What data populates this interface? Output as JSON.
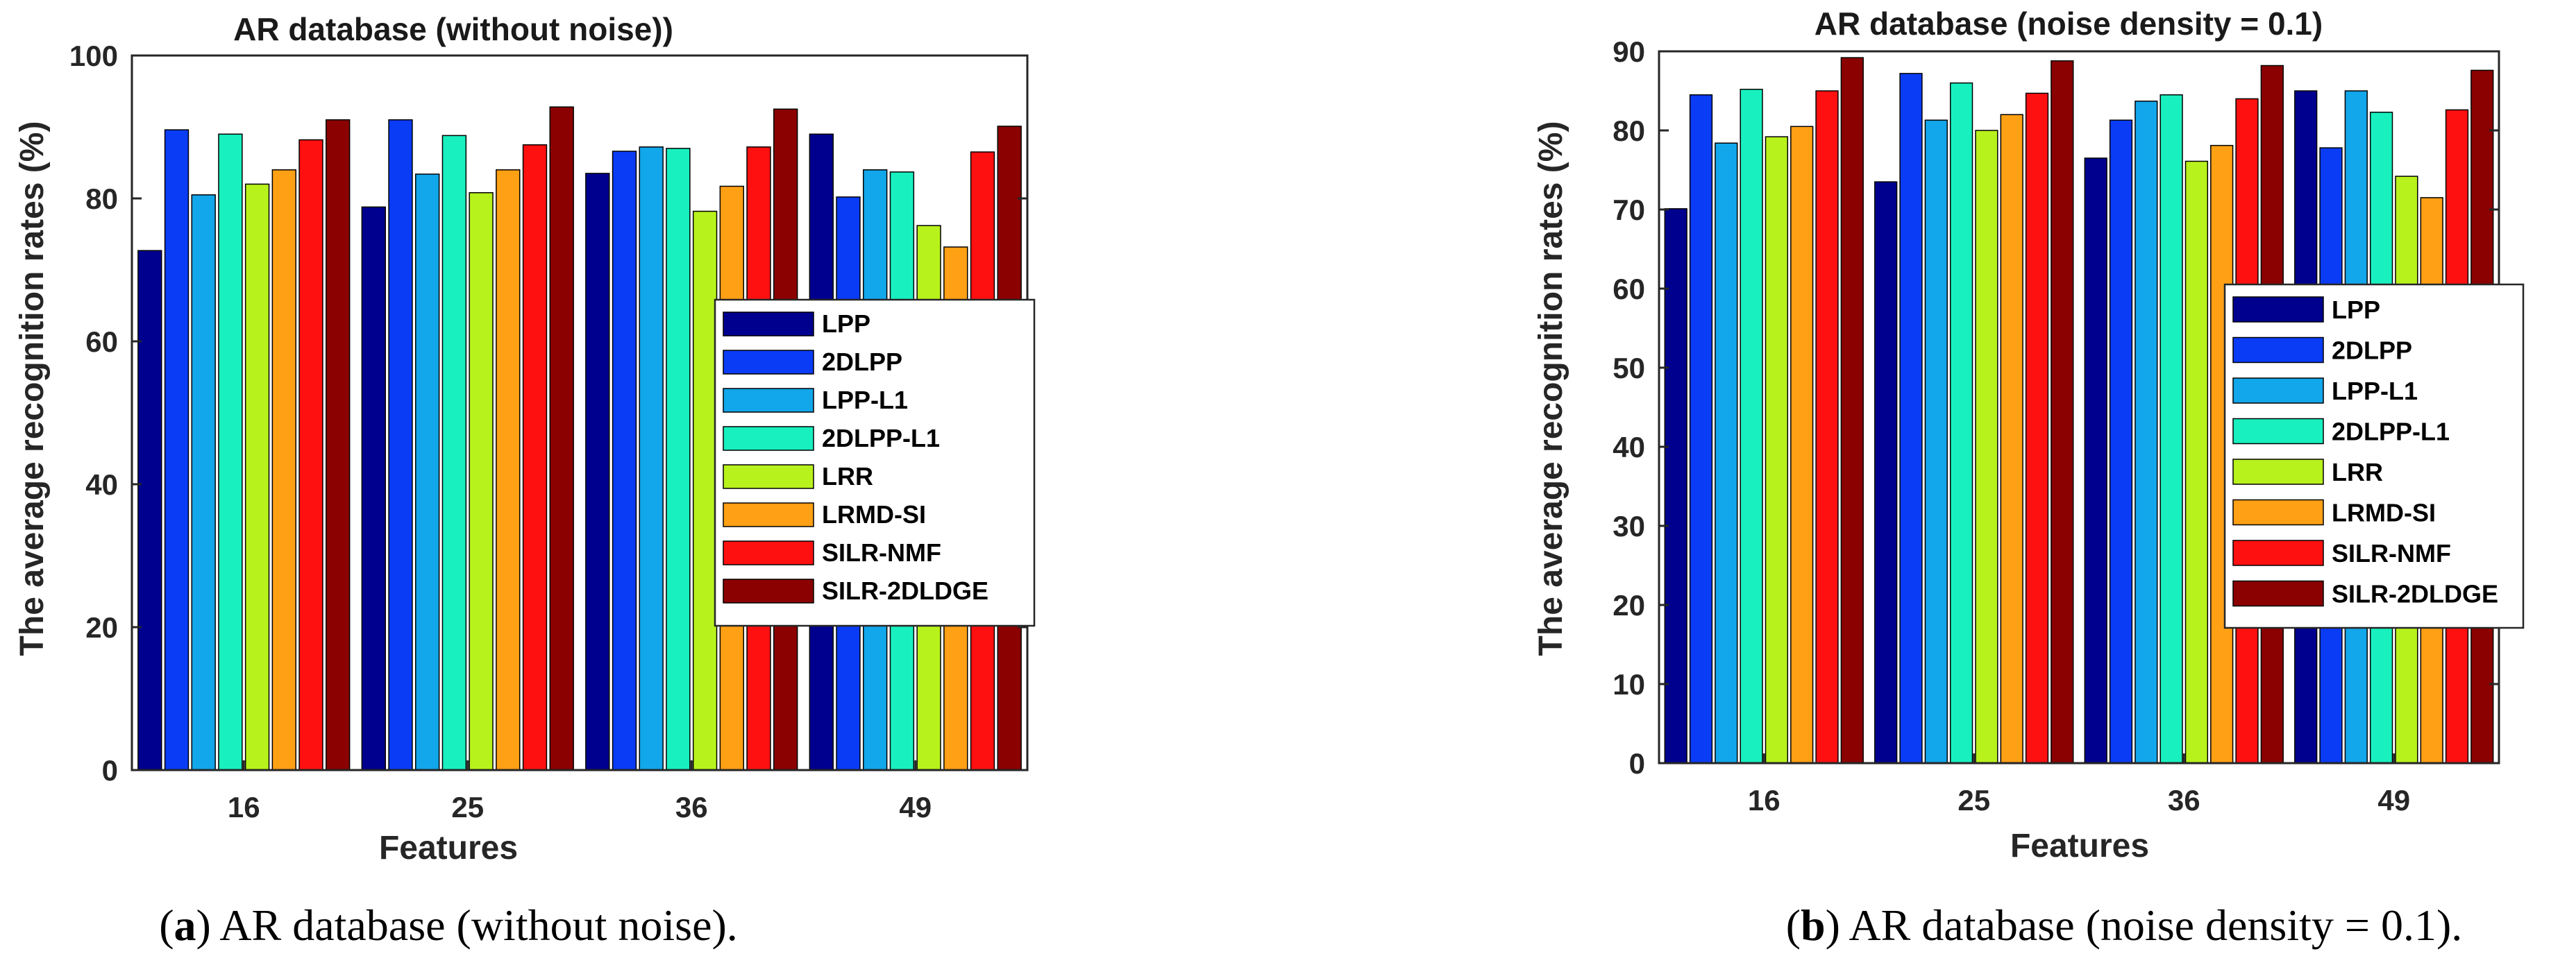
{
  "colors": {
    "LPP": "#00008f",
    "2DLPP": "#0a3cf5",
    "LPP-L1": "#12a6ea",
    "2DLPP-L1": "#18f0bf",
    "LRR": "#b8f21c",
    "LRMD-SI": "#ffa015",
    "SILR-NMF": "#ff1010",
    "SILR-2DLDGE": "#8b0000"
  },
  "chart_data": [
    {
      "type": "bar",
      "title": "AR database (without noise))",
      "xlabel": "Features",
      "ylabel": "The average recognition rates (%)",
      "categories": [
        "16",
        "25",
        "36",
        "49"
      ],
      "ylim": [
        0,
        100
      ],
      "yticks": [
        "0",
        "20",
        "40",
        "60",
        "80",
        "100"
      ],
      "legend_position": "center-right",
      "caption_letter": "a",
      "caption_text": "AR database (without noise).",
      "series": [
        {
          "name": "LPP",
          "values": [
            72.7,
            78.8,
            83.5,
            89.0
          ]
        },
        {
          "name": "2DLPP",
          "values": [
            89.6,
            91.0,
            86.6,
            80.2
          ]
        },
        {
          "name": "LPP-L1",
          "values": [
            80.5,
            83.4,
            87.2,
            84.0
          ]
        },
        {
          "name": "2DLPP-L1",
          "values": [
            89.0,
            88.8,
            87.0,
            83.7
          ]
        },
        {
          "name": "LRR",
          "values": [
            82.0,
            80.8,
            78.2,
            76.2
          ]
        },
        {
          "name": "LRMD-SI",
          "values": [
            84.0,
            84.0,
            81.7,
            73.2
          ]
        },
        {
          "name": "SILR-NMF",
          "values": [
            88.2,
            87.5,
            87.2,
            86.5
          ]
        },
        {
          "name": "SILR-2DLDGE",
          "values": [
            91.0,
            92.8,
            92.5,
            90.1
          ]
        }
      ]
    },
    {
      "type": "bar",
      "title": "AR database (noise density = 0.1)",
      "xlabel": "Features",
      "ylabel": "The average recognition rates (%)",
      "categories": [
        "16",
        "25",
        "36",
        "49"
      ],
      "ylim": [
        0,
        90
      ],
      "yticks": [
        "0",
        "10",
        "20",
        "30",
        "40",
        "50",
        "60",
        "70",
        "80",
        "90"
      ],
      "legend_position": "center-right",
      "caption_letter": "b",
      "caption_text": "AR database (noise density = 0.1).",
      "series": [
        {
          "name": "LPP",
          "values": [
            70.1,
            73.5,
            76.5,
            85.0
          ]
        },
        {
          "name": "2DLPP",
          "values": [
            84.5,
            87.2,
            81.3,
            77.8
          ]
        },
        {
          "name": "LPP-L1",
          "values": [
            78.4,
            81.3,
            83.7,
            85.0
          ]
        },
        {
          "name": "2DLPP-L1",
          "values": [
            85.2,
            86.0,
            84.5,
            82.3
          ]
        },
        {
          "name": "LRR",
          "values": [
            79.2,
            80.0,
            76.1,
            74.2
          ]
        },
        {
          "name": "LRMD-SI",
          "values": [
            80.5,
            82.0,
            78.1,
            71.5
          ]
        },
        {
          "name": "SILR-NMF",
          "values": [
            85.0,
            84.7,
            84.0,
            82.6
          ]
        },
        {
          "name": "SILR-2DLDGE",
          "values": [
            89.2,
            88.8,
            88.2,
            87.6
          ]
        }
      ]
    }
  ]
}
